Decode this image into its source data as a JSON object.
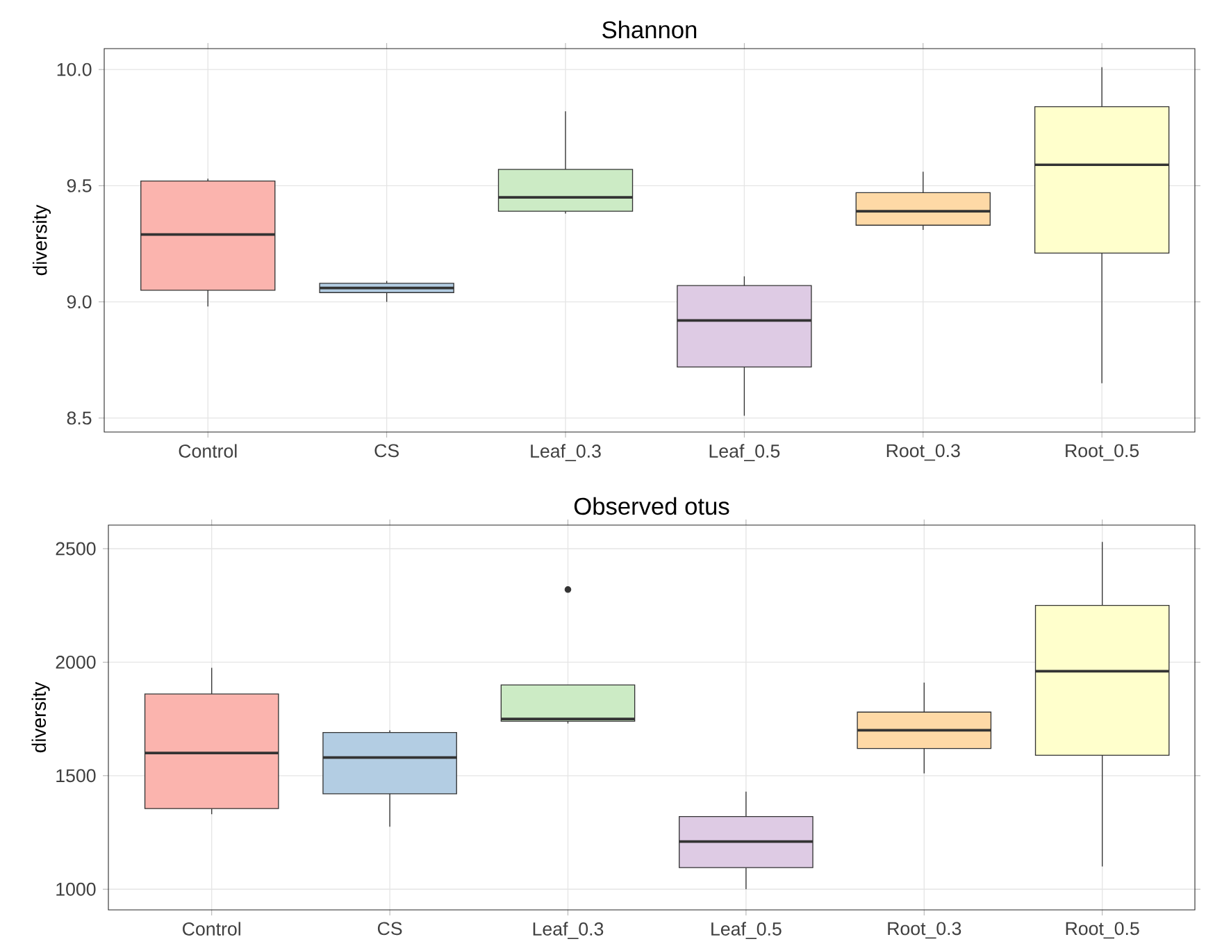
{
  "chart_data": [
    {
      "type": "box",
      "title": "Shannon",
      "ylabel": "diversity",
      "categories": [
        "Control",
        "CS",
        "Leaf_0.3",
        "Leaf_0.5",
        "Root_0.3",
        "Root_0.5"
      ],
      "colors": [
        "#fbb4ae",
        "#b3cde3",
        "#ccebc5",
        "#decbe4",
        "#fed9a6",
        "#ffffcc"
      ],
      "boxes": [
        {
          "low": 8.98,
          "q1": 9.05,
          "median": 9.29,
          "q3": 9.52,
          "high": 9.53
        },
        {
          "low": 9.0,
          "q1": 9.04,
          "median": 9.06,
          "q3": 9.08,
          "high": 9.09
        },
        {
          "low": 9.38,
          "q1": 9.39,
          "median": 9.45,
          "q3": 9.57,
          "high": 9.82
        },
        {
          "low": 8.51,
          "q1": 8.72,
          "median": 8.92,
          "q3": 9.07,
          "high": 9.11
        },
        {
          "low": 9.31,
          "q1": 9.33,
          "median": 9.39,
          "q3": 9.47,
          "high": 9.56
        },
        {
          "low": 8.65,
          "q1": 9.21,
          "median": 9.59,
          "q3": 9.84,
          "high": 10.01
        }
      ],
      "ylim": [
        8.44,
        10.09
      ],
      "yticks": [
        8.5,
        {
          "value": 9,
          "label": "9.0"
        },
        9.5,
        {
          "value": 10,
          "label": "10.0"
        }
      ],
      "grid": true
    },
    {
      "type": "box",
      "title": "Observed otus",
      "ylabel": "diversity",
      "categories": [
        "Control",
        "CS",
        "Leaf_0.3",
        "Leaf_0.5",
        "Root_0.3",
        "Root_0.5"
      ],
      "colors": [
        "#fbb4ae",
        "#b3cde3",
        "#ccebc5",
        "#decbe4",
        "#fed9a6",
        "#ffffcc"
      ],
      "boxes": [
        {
          "low": 1330,
          "q1": 1355,
          "median": 1600,
          "q3": 1860,
          "high": 1975
        },
        {
          "low": 1275,
          "q1": 1420,
          "median": 1580,
          "q3": 1690,
          "high": 1700
        },
        {
          "low": 1730,
          "q1": 1740,
          "median": 1750,
          "q3": 1900,
          "high": 1900,
          "outliers": [
            2320
          ]
        },
        {
          "low": 1000,
          "q1": 1095,
          "median": 1210,
          "q3": 1320,
          "high": 1430
        },
        {
          "low": 1510,
          "q1": 1620,
          "median": 1700,
          "q3": 1780,
          "high": 1910
        },
        {
          "low": 1100,
          "q1": 1590,
          "median": 1960,
          "q3": 2250,
          "high": 2530
        }
      ],
      "ylim": [
        909,
        2604
      ],
      "yticks": [
        1000,
        1500,
        2000,
        2500
      ],
      "grid": true
    }
  ]
}
